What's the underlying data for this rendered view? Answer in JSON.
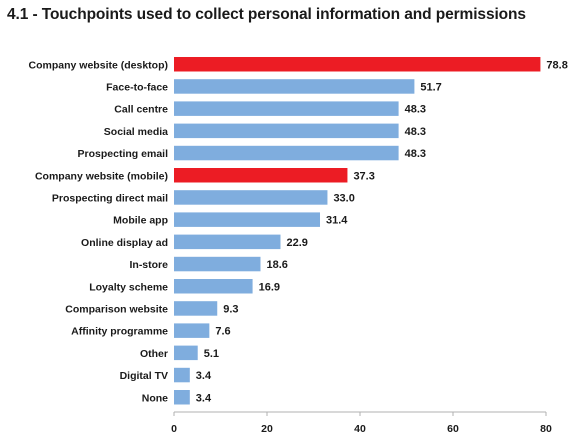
{
  "chart_data": {
    "type": "bar",
    "orientation": "horizontal",
    "title": "4.1 - Touchpoints used to collect personal information and permissions",
    "categories": [
      "Company website (desktop)",
      "Face-to-face",
      "Call centre",
      "Social media",
      "Prospecting email",
      "Company website (mobile)",
      "Prospecting direct mail",
      "Mobile app",
      "Online display ad",
      "In-store",
      "Loyalty scheme",
      "Comparison website",
      "Affinity programme",
      "Other",
      "Digital TV",
      "None"
    ],
    "values": [
      78.8,
      51.7,
      48.3,
      48.3,
      48.3,
      37.3,
      33.0,
      31.4,
      22.9,
      18.6,
      16.9,
      9.3,
      7.6,
      5.1,
      3.4,
      3.4
    ],
    "value_labels": [
      "78.8",
      "51.7",
      "48.3",
      "48.3",
      "48.3",
      "37.3",
      "33.0",
      "31.4",
      "22.9",
      "18.6",
      "16.9",
      "9.3",
      "7.6",
      "5.1",
      "3.4",
      "3.4"
    ],
    "highlighted": [
      0,
      5
    ],
    "xlim": [
      0,
      80
    ],
    "xticks": [
      "0",
      "20",
      "40",
      "60",
      "80"
    ],
    "grid": false,
    "colors": {
      "bar": "#7fadde",
      "highlight": "#ec1c24",
      "text": "#1a1a1a",
      "axis": "#b0b0b0"
    }
  }
}
